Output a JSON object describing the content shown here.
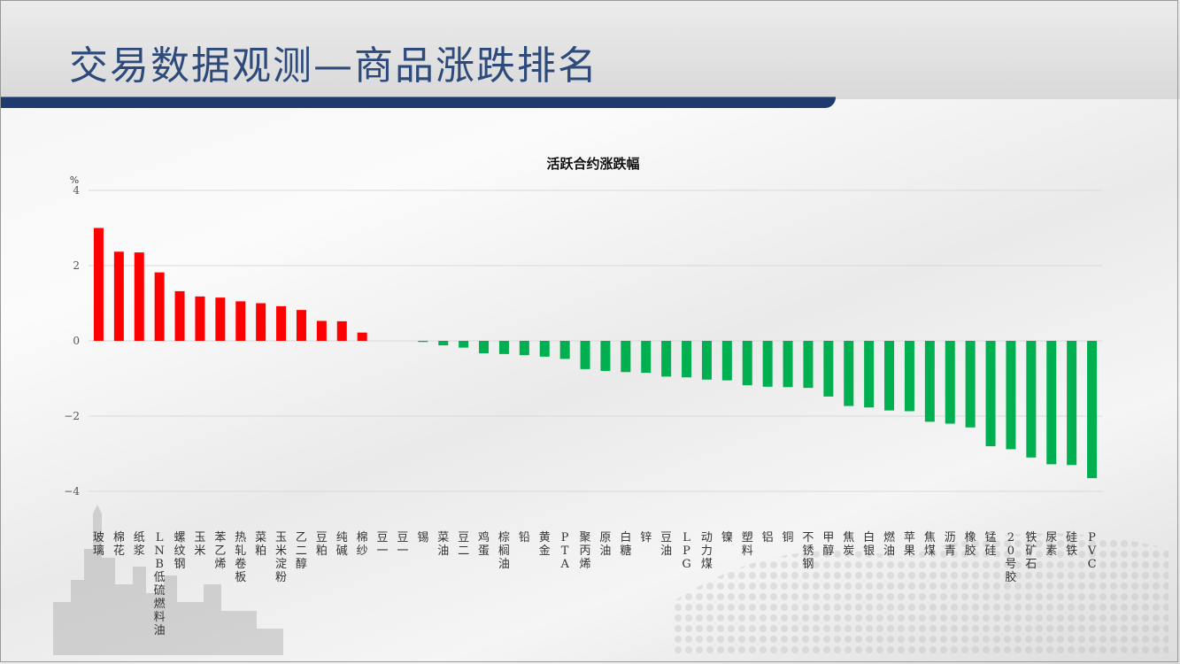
{
  "page": {
    "title": "交易数据观测—商品涨跌排名"
  },
  "colors": {
    "up": "#ff0000",
    "down": "#00b050",
    "title": "#2d4a7a",
    "rule": "#1f3a6e"
  },
  "chart_data": {
    "type": "bar",
    "title": "活跃合约涨跌幅",
    "ylabel": "%",
    "xlabel": "",
    "ylim": [
      -4,
      4
    ],
    "yticks": [
      4,
      2,
      0,
      -2,
      -4
    ],
    "grid": true,
    "categories": [
      "玻璃",
      "棉花",
      "纸浆",
      "LNB低硫燃料油",
      "螺纹钢",
      "玉米",
      "苯乙烯",
      "热轧卷板",
      "菜粕",
      "玉米淀粉",
      "乙二醇",
      "豆粕",
      "纯碱",
      "棉纱",
      "豆一",
      "豆一",
      "锡",
      "菜油",
      "豆二",
      "鸡蛋",
      "棕榈油",
      "铅",
      "黄金",
      "PTA",
      "聚丙烯",
      "原油",
      "白糖",
      "锌",
      "豆油",
      "LPG",
      "动力煤",
      "镍",
      "塑料",
      "铝",
      "铜",
      "不锈钢",
      "甲醇",
      "焦炭",
      "白银",
      "燃油",
      "苹果",
      "焦煤",
      "沥青",
      "橡胶",
      "锰硅",
      "20号胶",
      "铁矿石",
      "尿素",
      "硅铁",
      "PVC"
    ],
    "values": [
      3.0,
      2.37,
      2.35,
      1.82,
      1.32,
      1.18,
      1.15,
      1.05,
      1.0,
      0.92,
      0.82,
      0.53,
      0.52,
      0.22,
      0.0,
      0.0,
      -0.03,
      -0.12,
      -0.18,
      -0.33,
      -0.35,
      -0.38,
      -0.42,
      -0.48,
      -0.75,
      -0.8,
      -0.83,
      -0.85,
      -0.95,
      -0.97,
      -1.03,
      -1.05,
      -1.18,
      -1.22,
      -1.23,
      -1.25,
      -1.48,
      -1.73,
      -1.77,
      -1.85,
      -1.87,
      -2.15,
      -2.2,
      -2.3,
      -2.8,
      -2.88,
      -3.1,
      -3.28,
      -3.3,
      -3.65
    ]
  }
}
